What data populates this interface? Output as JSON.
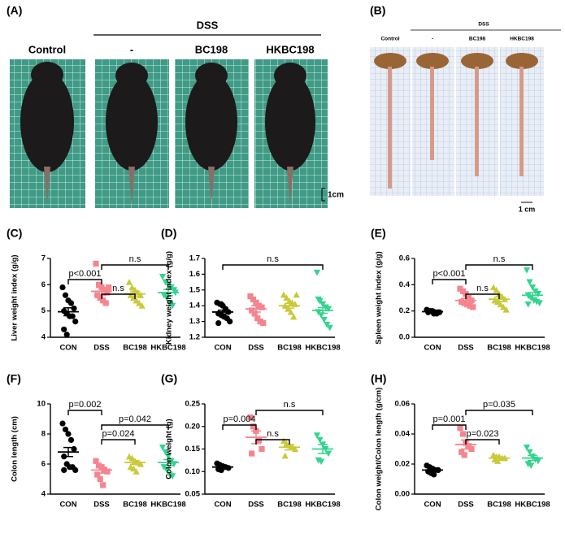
{
  "photo_panels": {
    "a": {
      "label": "(A)",
      "group": "DSS",
      "columns": [
        "Control",
        "-",
        "BC198",
        "HKBC198"
      ],
      "scale": "1cm"
    },
    "b": {
      "label": "(B)",
      "group": "DSS",
      "columns": [
        "Control",
        "-",
        "BC198",
        "HKBC198"
      ],
      "scale": "1 cm"
    }
  },
  "chart_data": [
    {
      "type": "dot",
      "panel_label": "(C)",
      "y_label": "Liver weight index (g/g)",
      "categories": [
        "CON",
        "DSS",
        "BC198",
        "HKBC198"
      ],
      "colors": [
        "#000000",
        "#f4858e",
        "#c9c93a",
        "#33d48f"
      ],
      "points": [
        [
          5.9,
          5.6,
          5.4,
          5.3,
          5.1,
          5.0,
          4.9,
          4.8,
          4.8,
          4.6,
          4.3,
          4.1
        ],
        [
          6.8,
          6.0,
          5.9,
          5.8,
          5.7,
          5.6,
          5.5,
          5.4,
          5.3,
          5.9
        ],
        [
          6.1,
          5.9,
          5.8,
          5.7,
          5.6,
          5.6,
          5.5,
          5.4,
          5.3,
          5.2
        ],
        [
          6.3,
          6.1,
          6.0,
          5.9,
          5.8,
          5.6,
          5.5,
          5.3,
          5.2,
          5.7
        ]
      ],
      "means": [
        4.97,
        5.75,
        5.65,
        5.7
      ],
      "errors": [
        0.15,
        0.15,
        0.1,
        0.12
      ],
      "ylim": [
        4,
        7
      ],
      "yticks": [
        4,
        5,
        6,
        7
      ],
      "comparisons": [
        {
          "label": "n.s",
          "pair": [
            "DSS",
            "BC198"
          ]
        },
        {
          "label": "p<0.001",
          "pair": [
            "CON",
            "DSS"
          ]
        },
        {
          "label": "n.s",
          "pair": [
            "DSS",
            "HKBC198"
          ]
        }
      ]
    },
    {
      "type": "dot",
      "panel_label": "(D)",
      "y_label": "Kidney weight index (g/g)",
      "categories": [
        "CON",
        "DSS",
        "BC198",
        "HKBC198"
      ],
      "colors": [
        "#000000",
        "#f4858e",
        "#c9c93a",
        "#33d48f"
      ],
      "points": [
        [
          1.42,
          1.41,
          1.4,
          1.38,
          1.36,
          1.35,
          1.34,
          1.33,
          1.32,
          1.3,
          1.29,
          1.41
        ],
        [
          1.46,
          1.44,
          1.42,
          1.4,
          1.39,
          1.37,
          1.35,
          1.32,
          1.3,
          1.29
        ],
        [
          1.47,
          1.45,
          1.43,
          1.42,
          1.41,
          1.4,
          1.38,
          1.36,
          1.33,
          1.47
        ],
        [
          1.61,
          1.43,
          1.41,
          1.39,
          1.38,
          1.36,
          1.34,
          1.31,
          1.28,
          1.26,
          1.44
        ]
      ],
      "means": [
        1.36,
        1.38,
        1.4,
        1.37
      ],
      "errors": [
        0.012,
        0.02,
        0.015,
        0.018
      ],
      "ylim": [
        1.2,
        1.7
      ],
      "yticks": [
        1.2,
        1.3,
        1.4,
        1.5,
        1.6,
        1.7
      ],
      "comparisons": [
        {
          "label": "n.s",
          "pair": [
            "CON",
            "HKBC198"
          ]
        }
      ]
    },
    {
      "type": "dot",
      "panel_label": "(E)",
      "y_label": "Spleen weight index (g/g)",
      "categories": [
        "CON",
        "DSS",
        "BC198",
        "HKBC198"
      ],
      "colors": [
        "#000000",
        "#f4858e",
        "#c9c93a",
        "#33d48f"
      ],
      "points": [
        [
          0.21,
          0.2,
          0.2,
          0.19,
          0.19,
          0.19,
          0.2,
          0.18,
          0.18,
          0.19,
          0.2
        ],
        [
          0.37,
          0.35,
          0.33,
          0.3,
          0.28,
          0.27,
          0.26,
          0.25,
          0.24,
          0.23
        ],
        [
          0.38,
          0.36,
          0.33,
          0.31,
          0.29,
          0.28,
          0.27,
          0.25,
          0.23,
          0.21
        ],
        [
          0.51,
          0.42,
          0.38,
          0.35,
          0.33,
          0.32,
          0.3,
          0.28,
          0.27,
          0.26,
          0.25
        ]
      ],
      "means": [
        0.195,
        0.28,
        0.29,
        0.32
      ],
      "errors": [
        0.003,
        0.015,
        0.016,
        0.02
      ],
      "ylim": [
        0,
        0.6
      ],
      "yticks": [
        {
          "value": 0,
          "label": "0.0"
        },
        0.2,
        0.4,
        0.6
      ],
      "comparisons": [
        {
          "label": "n.s",
          "pair": [
            "DSS",
            "BC198"
          ]
        },
        {
          "label": "p<0.001",
          "pair": [
            "CON",
            "DSS"
          ]
        },
        {
          "label": "n.s",
          "pair": [
            "DSS",
            "HKBC198"
          ]
        }
      ]
    },
    {
      "type": "dot",
      "panel_label": "(F)",
      "y_label": "Colon length (cm)",
      "categories": [
        "CON",
        "DSS",
        "BC198",
        "HKBC198"
      ],
      "colors": [
        "#000000",
        "#f4858e",
        "#c9c93a",
        "#33d48f"
      ],
      "points": [
        [
          8.7,
          8.3,
          8.0,
          7.6,
          7.0,
          6.5,
          6.0,
          5.8,
          5.8,
          5.6,
          5.6
        ],
        [
          6.2,
          5.9,
          5.8,
          5.6,
          5.5,
          5.3,
          5.0,
          4.6
        ],
        [
          6.5,
          6.4,
          6.2,
          6.1,
          6.0,
          5.8,
          5.7,
          5.5
        ],
        [
          7.1,
          6.8,
          6.5,
          6.2,
          6.0,
          5.8,
          5.6,
          5.3,
          5.2
        ]
      ],
      "means": [
        6.8,
        5.6,
        6.1,
        6.1
      ],
      "errors": [
        0.3,
        0.2,
        0.12,
        0.2
      ],
      "ylim": [
        4,
        10
      ],
      "yticks": [
        4,
        6,
        8,
        10
      ],
      "comparisons": [
        {
          "label": "p=0.024",
          "pair": [
            "DSS",
            "BC198"
          ]
        },
        {
          "label": "p=0.042",
          "pair": [
            "DSS",
            "HKBC198"
          ]
        },
        {
          "label": "p=0.002",
          "pair": [
            "CON",
            "DSS"
          ]
        }
      ]
    },
    {
      "type": "dot",
      "panel_label": "(G)",
      "y_label": "Colon weight (g)",
      "categories": [
        "CON",
        "DSS",
        "BC198",
        "HKBC198"
      ],
      "colors": [
        "#000000",
        "#f4858e",
        "#c9c93a",
        "#33d48f"
      ],
      "points": [
        [
          0.118,
          0.115,
          0.112,
          0.11,
          0.108,
          0.105,
          0.103
        ],
        [
          0.22,
          0.2,
          0.19,
          0.17,
          0.15,
          0.14
        ],
        [
          0.168,
          0.162,
          0.158,
          0.155,
          0.15,
          0.135
        ],
        [
          0.18,
          0.17,
          0.16,
          0.15,
          0.14,
          0.125,
          0.122
        ]
      ],
      "means": [
        0.11,
        0.176,
        0.154,
        0.15
      ],
      "errors": [
        0.003,
        0.014,
        0.006,
        0.01
      ],
      "ylim": [
        0.05,
        0.25
      ],
      "yticks": [
        0.05,
        {
          "value": 0.1,
          "label": "0.10"
        },
        0.15,
        {
          "value": 0.2,
          "label": "0.20"
        },
        0.25
      ],
      "comparisons": [
        {
          "label": "n.s",
          "pair": [
            "DSS",
            "BC198"
          ]
        },
        {
          "label": "p=0.004",
          "pair": [
            "CON",
            "DSS"
          ]
        },
        {
          "label": "n.s",
          "pair": [
            "DSS",
            "HKBC198"
          ]
        }
      ]
    },
    {
      "type": "dot",
      "panel_label": "(H)",
      "y_label": "Colon weight/Colon length (g/cm)",
      "categories": [
        "CON",
        "DSS",
        "BC198",
        "HKBC198"
      ],
      "colors": [
        "#000000",
        "#f4858e",
        "#c9c93a",
        "#33d48f"
      ],
      "points": [
        [
          0.019,
          0.018,
          0.017,
          0.016,
          0.016,
          0.015,
          0.014,
          0.013
        ],
        [
          0.044,
          0.04,
          0.034,
          0.032,
          0.03,
          0.028,
          0.026
        ],
        [
          0.026,
          0.025,
          0.025,
          0.024,
          0.024,
          0.023,
          0.022
        ],
        [
          0.031,
          0.028,
          0.025,
          0.023,
          0.022,
          0.02,
          0.019
        ]
      ],
      "means": [
        0.016,
        0.033,
        0.024,
        0.024
      ],
      "errors": [
        0.001,
        0.003,
        0.0007,
        0.0017
      ],
      "ylim": [
        0,
        0.06
      ],
      "yticks": [
        {
          "value": 0,
          "label": "0.00"
        },
        0.02,
        0.04,
        0.06
      ],
      "comparisons": [
        {
          "label": "p=0.023",
          "pair": [
            "DSS",
            "BC198"
          ]
        },
        {
          "label": "p=0.001",
          "pair": [
            "CON",
            "DSS"
          ]
        },
        {
          "label": "p=0.035",
          "pair": [
            "DSS",
            "HKBC198"
          ]
        }
      ]
    }
  ]
}
